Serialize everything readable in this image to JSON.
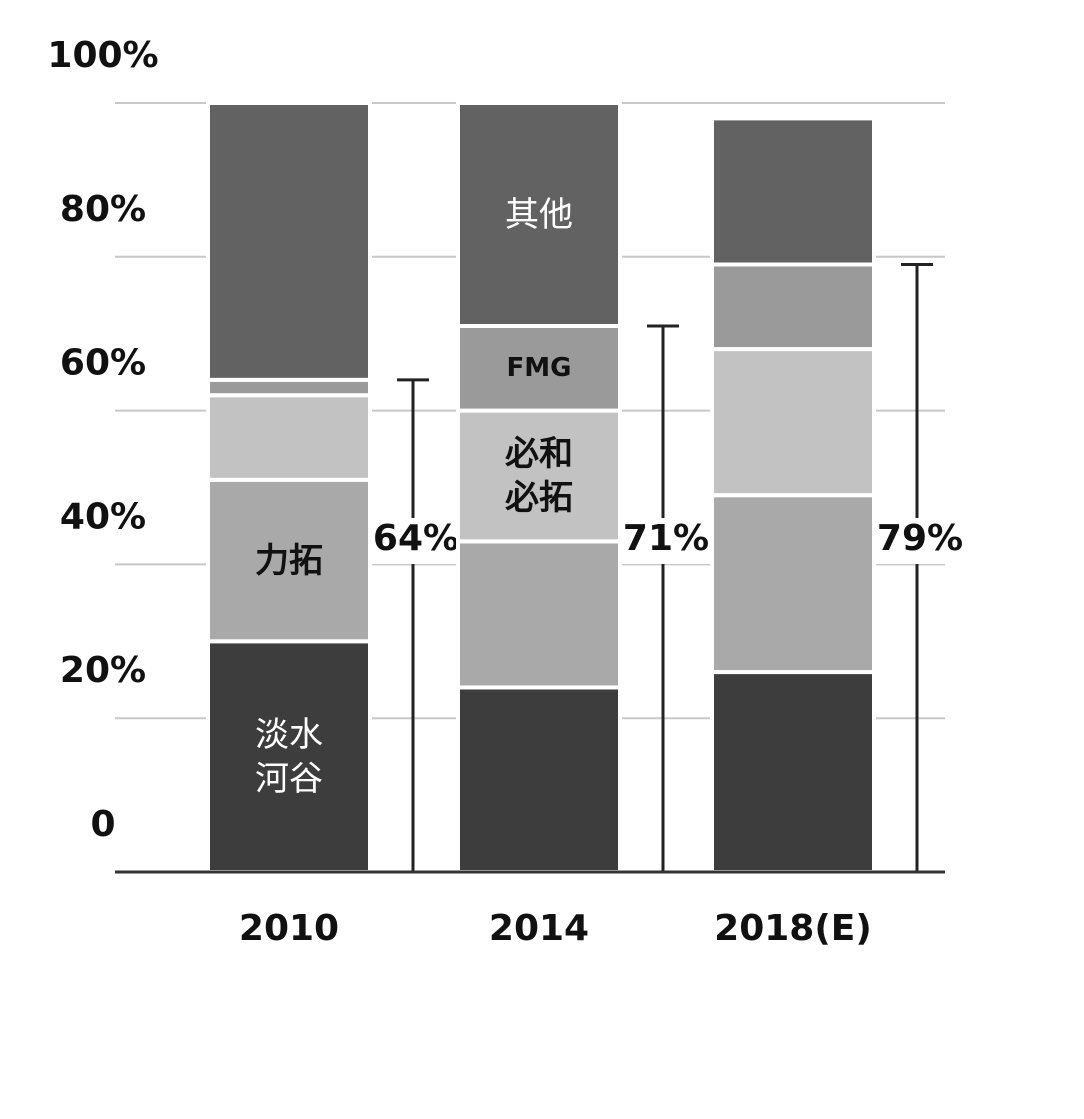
{
  "chart_data": {
    "type": "stacked-bar",
    "categories": [
      "2010",
      "2014",
      "2018(E)"
    ],
    "series": [
      {
        "name": "淡水河谷",
        "color": "#3d3d3d",
        "values": [
          30,
          24,
          26
        ]
      },
      {
        "name": "力拓",
        "color": "#a9a9a9",
        "values": [
          21,
          19,
          23
        ]
      },
      {
        "name": "必和必拓",
        "color": "#c2c2c2",
        "values": [
          11,
          17,
          19
        ]
      },
      {
        "name": "FMG",
        "color": "#9a9a9a",
        "values": [
          2,
          11,
          11
        ]
      },
      {
        "name": "其他",
        "color": "#626262",
        "values": [
          36,
          29,
          19
        ]
      }
    ],
    "annotations": {
      "values": [
        64,
        71,
        79
      ],
      "value_labels": [
        "64%",
        "71%",
        "79%"
      ]
    },
    "ylim": [
      0,
      100
    ],
    "yticks": [
      0,
      {
        "value": 20,
        "label": "20%"
      },
      {
        "value": 40,
        "label": "40%"
      },
      {
        "value": 60,
        "label": "60%"
      },
      {
        "value": 80,
        "label": "80%"
      },
      {
        "value": 100,
        "label": "100%"
      }
    ],
    "grid": true
  }
}
